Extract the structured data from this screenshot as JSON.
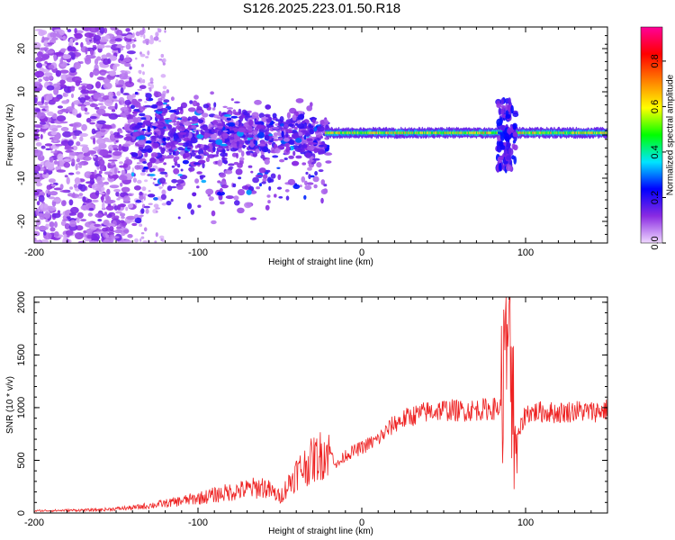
{
  "title": "S126.2025.223.01.50.R18",
  "chart_data": [
    {
      "type": "heatmap",
      "name": "spectrogram",
      "xlabel": "Height of straight line (km)",
      "ylabel": "Frequency (Hz)",
      "xlim": [
        -200,
        150
      ],
      "ylim": [
        -25,
        25
      ],
      "xticks": [
        -200,
        -100,
        0,
        100
      ],
      "yticks": [
        -20,
        -10,
        0,
        10,
        20
      ],
      "colorbar": {
        "label": "Normalized spectral amplitude",
        "range": [
          0,
          0.95
        ],
        "ticks": [
          "0.0",
          "0.2",
          "0.4",
          "0.6",
          "0.8"
        ],
        "tick_values": [
          0,
          0.2,
          0.4,
          0.6,
          0.8
        ],
        "colors": [
          "#f0d8ff",
          "#8a2be2",
          "#0000ff",
          "#00e5ff",
          "#00ff00",
          "#ffff00",
          "#ff8000",
          "#ff0000",
          "#ff0099"
        ]
      },
      "carrier": {
        "start_height_km": -22,
        "end_height_km": 150,
        "frequency_hz": 0.5,
        "amplitude": 0.7,
        "disturbance_heights_km": [
          86,
          91
        ]
      }
    },
    {
      "type": "line",
      "name": "snr",
      "xlabel": "Height of straight line (km)",
      "ylabel": "SNR (10 * v/v)",
      "xlim": [
        -200,
        150
      ],
      "ylim": [
        0,
        2050
      ],
      "xticks": [
        -200,
        -100,
        0,
        100
      ],
      "yticks": [
        0,
        500,
        1000,
        1500,
        2000
      ],
      "color": "#ee2222",
      "series": [
        {
          "name": "SNR",
          "x": [
            -200,
            -180,
            -160,
            -140,
            -120,
            -100,
            -80,
            -60,
            -50,
            -40,
            -30,
            -20,
            -15,
            -10,
            0,
            10,
            20,
            30,
            40,
            50,
            60,
            70,
            80,
            85,
            88,
            90,
            92,
            95,
            100,
            110,
            120,
            130,
            140,
            150
          ],
          "y": [
            20,
            25,
            30,
            50,
            90,
            140,
            200,
            250,
            150,
            380,
            500,
            600,
            450,
            550,
            620,
            700,
            850,
            920,
            960,
            980,
            970,
            980,
            990,
            1000,
            1500,
            1800,
            1200,
            700,
            950,
            960,
            950,
            970,
            960,
            980
          ]
        }
      ]
    }
  ]
}
